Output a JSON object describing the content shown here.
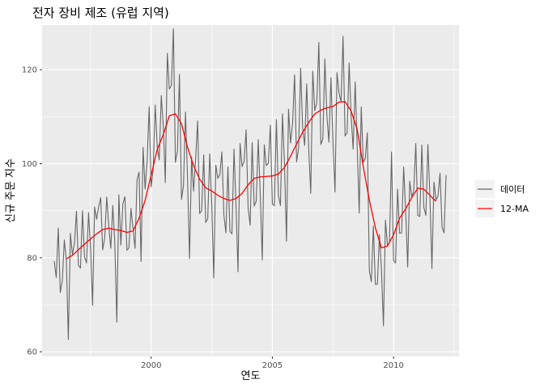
{
  "chart_data": {
    "type": "line",
    "title": "전자 장비 제조 (유럽 지역)",
    "xlabel": "연도",
    "ylabel": "신규 주문 지수",
    "xlim": [
      1995.5,
      2012.7
    ],
    "ylim": [
      59.0,
      129.5
    ],
    "x_ticks": [
      2000,
      2005,
      2010
    ],
    "y_ticks": [
      60,
      80,
      100,
      120
    ],
    "grid": true,
    "legend_position": "right",
    "series": [
      {
        "name": "데이터",
        "color": "#666666",
        "x": [
          1996.0,
          1996.083,
          1996.167,
          1996.25,
          1996.333,
          1996.417,
          1996.5,
          1996.583,
          1996.667,
          1996.75,
          1996.833,
          1996.917,
          1997.0,
          1997.083,
          1997.167,
          1997.25,
          1997.333,
          1997.417,
          1997.5,
          1997.583,
          1997.667,
          1997.75,
          1997.833,
          1997.917,
          1998.0,
          1998.083,
          1998.167,
          1998.25,
          1998.333,
          1998.417,
          1998.5,
          1998.583,
          1998.667,
          1998.75,
          1998.833,
          1998.917,
          1999.0,
          1999.083,
          1999.167,
          1999.25,
          1999.333,
          1999.417,
          1999.5,
          1999.583,
          1999.667,
          1999.75,
          1999.833,
          1999.917,
          2000.0,
          2000.083,
          2000.167,
          2000.25,
          2000.333,
          2000.417,
          2000.5,
          2000.583,
          2000.667,
          2000.75,
          2000.833,
          2000.917,
          2001.0,
          2001.083,
          2001.167,
          2001.25,
          2001.333,
          2001.417,
          2001.5,
          2001.583,
          2001.667,
          2001.75,
          2001.833,
          2001.917,
          2002.0,
          2002.083,
          2002.167,
          2002.25,
          2002.333,
          2002.417,
          2002.5,
          2002.583,
          2002.667,
          2002.75,
          2002.833,
          2002.917,
          2003.0,
          2003.083,
          2003.167,
          2003.25,
          2003.333,
          2003.417,
          2003.5,
          2003.583,
          2003.667,
          2003.75,
          2003.833,
          2003.917,
          2004.0,
          2004.083,
          2004.167,
          2004.25,
          2004.333,
          2004.417,
          2004.5,
          2004.583,
          2004.667,
          2004.75,
          2004.833,
          2004.917,
          2005.0,
          2005.083,
          2005.167,
          2005.25,
          2005.333,
          2005.417,
          2005.5,
          2005.583,
          2005.667,
          2005.75,
          2005.833,
          2005.917,
          2006.0,
          2006.083,
          2006.167,
          2006.25,
          2006.333,
          2006.417,
          2006.5,
          2006.583,
          2006.667,
          2006.75,
          2006.833,
          2006.917,
          2007.0,
          2007.083,
          2007.167,
          2007.25,
          2007.333,
          2007.417,
          2007.5,
          2007.583,
          2007.667,
          2007.75,
          2007.833,
          2007.917,
          2008.0,
          2008.083,
          2008.167,
          2008.25,
          2008.333,
          2008.417,
          2008.5,
          2008.583,
          2008.667,
          2008.75,
          2008.833,
          2008.917,
          2009.0,
          2009.083,
          2009.167,
          2009.25,
          2009.333,
          2009.417,
          2009.5,
          2009.583,
          2009.667,
          2009.75,
          2009.833,
          2009.917,
          2010.0,
          2010.083,
          2010.167,
          2010.25,
          2010.333,
          2010.417,
          2010.5,
          2010.583,
          2010.667,
          2010.75,
          2010.833,
          2010.917,
          2011.0,
          2011.083,
          2011.167,
          2011.25,
          2011.333,
          2011.417,
          2011.5,
          2011.583,
          2011.667,
          2011.75,
          2011.833,
          2011.917,
          2012.0,
          2012.083,
          2012.167
        ],
        "values": [
          79.3,
          75.8,
          86.3,
          72.6,
          75.1,
          83.8,
          79.4,
          62.6,
          85.2,
          80.7,
          82.9,
          89.9,
          78.4,
          77.8,
          90.0,
          80.2,
          78.9,
          89.6,
          82.1,
          69.9,
          90.8,
          88.2,
          90.8,
          92.8,
          81.7,
          84.2,
          92.9,
          86.8,
          82.0,
          91.1,
          83.2,
          66.3,
          93.4,
          82.7,
          91.5,
          93.0,
          81.6,
          82.1,
          90.5,
          86.3,
          82.0,
          96.6,
          98.2,
          79.2,
          103.5,
          94.6,
          100.6,
          112.1,
          95.1,
          98.8,
          112.5,
          103.6,
          100.8,
          114.5,
          108.1,
          96.0,
          123.5,
          115.9,
          116.6,
          128.7,
          100.3,
          102.7,
          119.0,
          92.4,
          95.3,
          111.0,
          96.9,
          79.8,
          101.4,
          94.2,
          101.0,
          109.1,
          89.4,
          90.0,
          101.9,
          87.5,
          88.3,
          102.1,
          91.3,
          75.7,
          99.7,
          96.9,
          97.7,
          102.5,
          89.1,
          85.3,
          99.3,
          85.6,
          85.1,
          103.1,
          91.3,
          77.0,
          104.3,
          99.4,
          100.5,
          107.2,
          90.6,
          86.9,
          104.5,
          91.0,
          92.0,
          105.1,
          93.6,
          79.5,
          104.0,
          99.6,
          100.1,
          108.2,
          91.4,
          91.1,
          109.4,
          93.2,
          91.1,
          110.6,
          100.1,
          83.5,
          111.6,
          104.4,
          108.5,
          118.9,
          100.4,
          103.3,
          120.3,
          107.5,
          103.9,
          117.0,
          103.1,
          93.7,
          119.7,
          111.3,
          113.0,
          125.8,
          104.1,
          105.3,
          122.3,
          110.1,
          104.6,
          118.3,
          104.7,
          94.0,
          119.4,
          115.0,
          113.2,
          127.1,
          105.9,
          106.6,
          121.4,
          110.2,
          103.1,
          117.4,
          103.7,
          89.5,
          112.1,
          100.3,
          101.1,
          106.6,
          77.3,
          74.9,
          86.7,
          74.3,
          74.4,
          84.9,
          77.6,
          65.5,
          88.0,
          82.5,
          83.3,
          102.5,
          79.4,
          78.9,
          94.6,
          85.2,
          85.3,
          99.3,
          90.0,
          78.0,
          96.3,
          93.0,
          94.2,
          104.3,
          89.0,
          88.8,
          104.0,
          90.7,
          89.0,
          104.1,
          93.0,
          77.7,
          96.1,
          92.3,
          93.1,
          98.0,
          86.5,
          85.3,
          97.6
        ]
      },
      {
        "name": "12-MA",
        "color": "#ff0000",
        "x": [
          1996.5,
          1996.75,
          1997.0,
          1997.25,
          1997.5,
          1997.75,
          1998.0,
          1998.25,
          1998.5,
          1998.75,
          1999.0,
          1999.25,
          1999.5,
          1999.75,
          2000.0,
          2000.25,
          2000.5,
          2000.75,
          2001.0,
          2001.25,
          2001.5,
          2001.75,
          2002.0,
          2002.25,
          2002.5,
          2002.75,
          2003.0,
          2003.25,
          2003.5,
          2003.75,
          2004.0,
          2004.25,
          2004.5,
          2004.75,
          2005.0,
          2005.25,
          2005.5,
          2005.75,
          2006.0,
          2006.25,
          2006.5,
          2006.75,
          2007.0,
          2007.25,
          2007.5,
          2007.75,
          2008.0,
          2008.25,
          2008.5,
          2008.75,
          2009.0,
          2009.25,
          2009.5,
          2009.75,
          2010.0,
          2010.25,
          2010.5,
          2010.75,
          2011.0,
          2011.25,
          2011.5,
          2011.75
        ],
        "values": [
          79.8,
          80.5,
          81.7,
          82.9,
          84.0,
          85.1,
          86.0,
          86.3,
          86.0,
          85.8,
          85.4,
          85.7,
          88.4,
          92.2,
          97.6,
          103.0,
          106.2,
          110.2,
          110.6,
          108.5,
          103.5,
          99.6,
          96.7,
          94.9,
          94.2,
          93.3,
          92.6,
          92.2,
          92.6,
          93.7,
          95.5,
          96.9,
          97.2,
          97.3,
          97.4,
          97.8,
          99.2,
          101.6,
          104.2,
          106.7,
          108.8,
          110.6,
          111.4,
          111.9,
          112.2,
          113.1,
          113.2,
          111.2,
          107.3,
          99.4,
          92.3,
          86.4,
          82.1,
          82.5,
          84.9,
          88.4,
          90.4,
          92.8,
          94.8,
          94.6,
          93.3,
          92.0
        ]
      }
    ]
  }
}
